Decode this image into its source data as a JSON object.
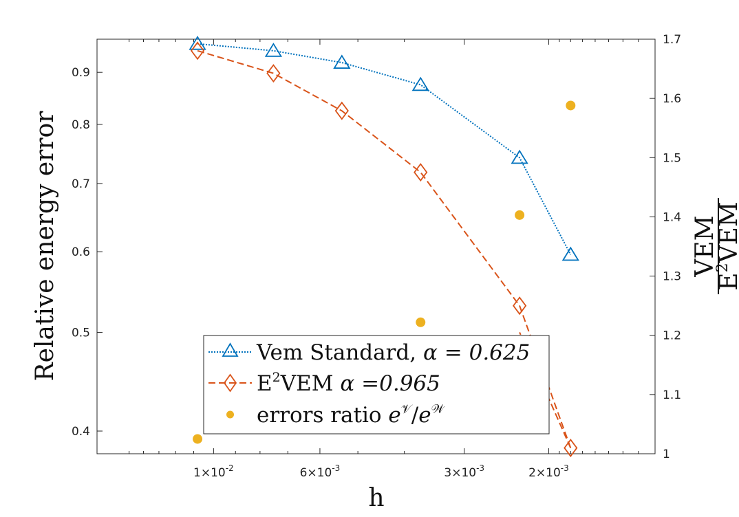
{
  "chart_data": {
    "type": "line",
    "xlabel": "h",
    "ylabel_left": "Relative energy error",
    "ylabel_right": {
      "numerator": "VEM",
      "denominator_base": "E",
      "denominator_sup": "2",
      "denominator_rest": "VEM"
    },
    "x_scale": "log",
    "x_reversed": true,
    "xlim": [
      0.0175,
      0.0012
    ],
    "y_scale": "log",
    "ylim_left": [
      0.38,
      0.97
    ],
    "ylim_right": [
      1.0,
      1.7
    ],
    "x_ticks": [
      {
        "value": 0.01,
        "mantissa": "1",
        "times": "×",
        "base": "10",
        "exp": "-2"
      },
      {
        "value": 0.006,
        "mantissa": "6",
        "times": "×",
        "base": "10",
        "exp": "-3"
      },
      {
        "value": 0.003,
        "mantissa": "3",
        "times": "×",
        "base": "10",
        "exp": "-3"
      },
      {
        "value": 0.002,
        "mantissa": "2",
        "times": "×",
        "base": "10",
        "exp": "-3"
      }
    ],
    "y_ticks_left": [
      {
        "value": 0.4,
        "label": "0.4"
      },
      {
        "value": 0.5,
        "label": "0.5"
      },
      {
        "value": 0.6,
        "label": "0.6"
      },
      {
        "value": 0.7,
        "label": "0.7"
      },
      {
        "value": 0.8,
        "label": "0.8"
      },
      {
        "value": 0.9,
        "label": "0.9"
      }
    ],
    "y_ticks_right": [
      {
        "value": 1.0,
        "label": "1"
      },
      {
        "value": 1.1,
        "label": "1.1"
      },
      {
        "value": 1.2,
        "label": "1.2"
      },
      {
        "value": 1.3,
        "label": "1.3"
      },
      {
        "value": 1.4,
        "label": "1.4"
      },
      {
        "value": 1.5,
        "label": "1.5"
      },
      {
        "value": 1.6,
        "label": "1.6"
      },
      {
        "value": 1.7,
        "label": "1.7"
      }
    ],
    "x": [
      0.0108,
      0.0075,
      0.0054,
      0.0037,
      0.0023,
      0.0018
    ],
    "series": [
      {
        "name": "Vem Standard",
        "alpha_text": "α = 0.625",
        "axis": "left",
        "color": "#0072BD",
        "marker": "triangle",
        "line_style": "dotted",
        "values": [
          0.96,
          0.945,
          0.92,
          0.875,
          0.742,
          0.596
        ]
      },
      {
        "name": "E²VEM",
        "alpha_text": "α =0.965",
        "axis": "left",
        "color": "#D95319",
        "marker": "diamond",
        "line_style": "dashed",
        "values": [
          0.945,
          0.898,
          0.825,
          0.718,
          0.531,
          0.385
        ],
        "extension": {
          "x": [
            0.0018,
            0.0023
          ],
          "values": [
            0.385,
            0.5
          ]
        }
      },
      {
        "name": "errors ratio",
        "axis": "right",
        "color": "#EDB120",
        "marker": "circle",
        "line_style": "none",
        "values": [
          1.025,
          null,
          null,
          1.222,
          1.403,
          1.588
        ]
      }
    ],
    "legend": {
      "placement": "lower-center",
      "entries": [
        {
          "label": "Vem Standard, ",
          "math": "α = 0.625"
        },
        {
          "label_base": "E",
          "label_sup": "2",
          "label_rest": "VEM ",
          "math": "α =0.965"
        },
        {
          "label": "errors ratio ",
          "math_base1": "e",
          "math_sup1": "𝒱",
          "slash": "/",
          "math_base2": "e",
          "math_sup2": "𝒲"
        }
      ]
    }
  }
}
